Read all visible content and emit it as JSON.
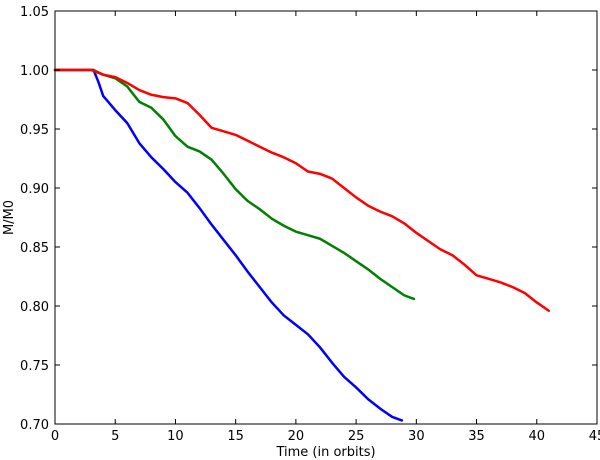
{
  "chart_data": {
    "type": "line",
    "title": "",
    "xlabel": "Time (in orbits)",
    "ylabel": "M/M0",
    "xlim": [
      0,
      45
    ],
    "ylim": [
      0.7,
      1.05
    ],
    "x_ticks": [
      0,
      5,
      10,
      15,
      20,
      25,
      30,
      35,
      40,
      45
    ],
    "x_tick_labels": [
      "0",
      "5",
      "10",
      "15",
      "20",
      "25",
      "30",
      "35",
      "40",
      "45"
    ],
    "y_ticks": [
      0.7,
      0.75,
      0.8,
      0.85,
      0.9,
      0.95,
      1.0,
      1.05
    ],
    "y_tick_labels": [
      "0.70",
      "0.75",
      "0.80",
      "0.85",
      "0.90",
      "0.95",
      "1.00",
      "1.05"
    ],
    "grid": false,
    "legend": "none",
    "series": [
      {
        "color": "#0000ff",
        "x": [
          0,
          3.2,
          3.6,
          4.0,
          5.0,
          6.0,
          7.0,
          8.0,
          9.0,
          10.0,
          11.0,
          12.0,
          13.0,
          14.0,
          15.0,
          16.0,
          17.0,
          18.0,
          19.0,
          20.0,
          21.0,
          22.0,
          23.0,
          24.0,
          25.0,
          26.0,
          27.0,
          28.0,
          28.8
        ],
        "y": [
          1.0,
          1.0,
          0.99,
          0.978,
          0.966,
          0.955,
          0.938,
          0.926,
          0.916,
          0.905,
          0.896,
          0.883,
          0.869,
          0.856,
          0.843,
          0.829,
          0.816,
          0.803,
          0.792,
          0.784,
          0.776,
          0.765,
          0.752,
          0.74,
          0.731,
          0.721,
          0.713,
          0.706,
          0.703
        ]
      },
      {
        "color": "#008000",
        "x": [
          0,
          3.2,
          4.0,
          5.0,
          6.0,
          7.0,
          8.0,
          9.0,
          10.0,
          11.0,
          12.0,
          13.0,
          14.0,
          15.0,
          16.0,
          17.0,
          18.0,
          19.0,
          20.0,
          21.0,
          22.0,
          23.0,
          24.0,
          25.0,
          26.0,
          27.0,
          28.0,
          29.0,
          29.8
        ],
        "y": [
          1.0,
          1.0,
          0.996,
          0.993,
          0.986,
          0.973,
          0.968,
          0.958,
          0.944,
          0.935,
          0.931,
          0.924,
          0.912,
          0.899,
          0.889,
          0.882,
          0.874,
          0.868,
          0.863,
          0.86,
          0.857,
          0.851,
          0.845,
          0.838,
          0.831,
          0.823,
          0.816,
          0.809,
          0.806
        ]
      },
      {
        "color": "#ff0000",
        "x": [
          0,
          3.0,
          4.0,
          5.0,
          6.0,
          7.0,
          8.0,
          9.0,
          10.0,
          11.0,
          12.0,
          13.0,
          14.0,
          15.0,
          16.0,
          17.0,
          18.0,
          19.0,
          20.0,
          21.0,
          22.0,
          23.0,
          24.0,
          25.0,
          26.0,
          27.0,
          28.0,
          29.0,
          30.0,
          31.0,
          32.0,
          33.0,
          34.0,
          35.0,
          36.0,
          37.0,
          38.0,
          39.0,
          40.0,
          41.0
        ],
        "y": [
          1.0,
          1.0,
          0.996,
          0.994,
          0.989,
          0.983,
          0.979,
          0.977,
          0.976,
          0.972,
          0.962,
          0.951,
          0.948,
          0.945,
          0.94,
          0.935,
          0.93,
          0.926,
          0.921,
          0.914,
          0.912,
          0.908,
          0.9,
          0.892,
          0.885,
          0.88,
          0.876,
          0.87,
          0.862,
          0.855,
          0.848,
          0.843,
          0.835,
          0.826,
          0.823,
          0.82,
          0.816,
          0.811,
          0.803,
          0.796
        ]
      }
    ]
  }
}
